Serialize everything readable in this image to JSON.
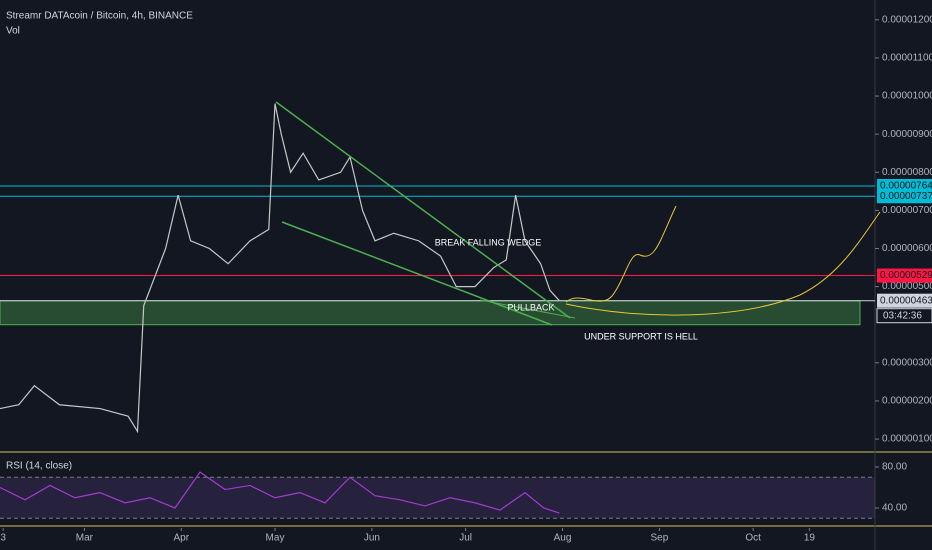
{
  "chart_data": [
    {
      "type": "line",
      "title": "Streamr DATAcoin / Bitcoin, 4h, BINANCE",
      "subtitle": "Vol",
      "color": "#c8c8c8",
      "x": [
        32,
        38,
        43,
        51,
        64,
        73,
        76,
        78,
        85,
        89,
        93,
        99,
        105,
        112,
        118,
        120,
        122,
        125,
        129,
        134,
        141,
        144,
        148,
        152,
        158,
        166,
        173,
        178,
        184,
        190,
        194,
        197,
        200,
        205,
        208,
        211
      ],
      "values": [
        1.8e-06,
        1.9e-06,
        2.4e-06,
        1.9e-06,
        1.8e-06,
        1.6e-06,
        1.2e-06,
        4.5e-06,
        6e-06,
        7.4e-06,
        6.2e-06,
        6e-06,
        5.6e-06,
        6.2e-06,
        6.5e-06,
        9.8e-06,
        9e-06,
        8e-06,
        8.5e-06,
        7.8e-06,
        8e-06,
        8.4e-06,
        7e-06,
        6.2e-06,
        6.4e-06,
        6.2e-06,
        5.8e-06,
        5e-06,
        5e-06,
        5.5e-06,
        5.7e-06,
        7.4e-06,
        6.2e-06,
        5.6e-06,
        4.9e-06,
        4.63e-06
      ],
      "xlim": [
        32,
        312
      ],
      "ylim": [
        6.6e-07,
        1.252e-05
      ],
      "xticks": [
        {
          "value": 33,
          "label": "3"
        },
        {
          "value": 59,
          "label": "Mar"
        },
        {
          "value": 90,
          "label": "Apr"
        },
        {
          "value": 120,
          "label": "May"
        },
        {
          "value": 151,
          "label": "Jun"
        },
        {
          "value": 181,
          "label": "Jul"
        },
        {
          "value": 212,
          "label": "Aug"
        },
        {
          "value": 243,
          "label": "Sep"
        },
        {
          "value": 273,
          "label": "Oct"
        },
        {
          "value": 291,
          "label": "19"
        }
      ],
      "yticks": [
        {
          "value": 1.2e-05,
          "label": "0.00001200"
        },
        {
          "value": 1.1e-05,
          "label": "0.00001100"
        },
        {
          "value": 1e-05,
          "label": "0.00001000"
        },
        {
          "value": 9e-06,
          "label": "0.00000900"
        },
        {
          "value": 8e-06,
          "label": "0.00000800"
        },
        {
          "value": 7e-06,
          "label": "0.00000700"
        },
        {
          "value": 6e-06,
          "label": "0.00000600"
        },
        {
          "value": 5e-06,
          "label": "0.00000500"
        },
        {
          "value": 3e-06,
          "label": "0.00000300"
        },
        {
          "value": 2e-06,
          "label": "0.00000200"
        },
        {
          "value": 1e-06,
          "label": "0.00000100"
        }
      ],
      "levels": [
        {
          "value": 7.64e-06,
          "label": "0.00000764",
          "color": "#00bcd4"
        },
        {
          "value": 7.37e-06,
          "label": "0.00000737",
          "color": "#00bcd4"
        },
        {
          "value": 5.29e-06,
          "label": "0.00000529",
          "color": "#ff1744"
        },
        {
          "value": 4.63e-06,
          "label": "0.00000463",
          "color": "#d1d4dc"
        }
      ],
      "zone": [
        4e-06,
        4.63e-06
      ],
      "countdown": "03:42:36",
      "annotations": [
        "BREAK FALLING WEDGE",
        "PULLBACK",
        "UNDER SUPPORT IS HELL"
      ]
    },
    {
      "type": "line",
      "title": "RSI (14, close)",
      "color": "#a33bd1",
      "x": [
        32,
        40,
        48,
        56,
        64,
        72,
        80,
        88,
        96,
        104,
        112,
        120,
        128,
        136,
        144,
        152,
        160,
        168,
        176,
        184,
        192,
        200,
        206,
        211
      ],
      "values": [
        60,
        48,
        62,
        50,
        55,
        45,
        50,
        40,
        75,
        58,
        62,
        50,
        55,
        45,
        70,
        52,
        48,
        42,
        50,
        45,
        38,
        55,
        40,
        35
      ],
      "xlim": [
        32,
        312
      ],
      "ylim": [
        23.4,
        91.7
      ],
      "yticks": [
        {
          "value": 80,
          "label": "80.00"
        },
        {
          "value": 40,
          "label": "40.00"
        }
      ],
      "bands": [
        70,
        30
      ]
    }
  ]
}
